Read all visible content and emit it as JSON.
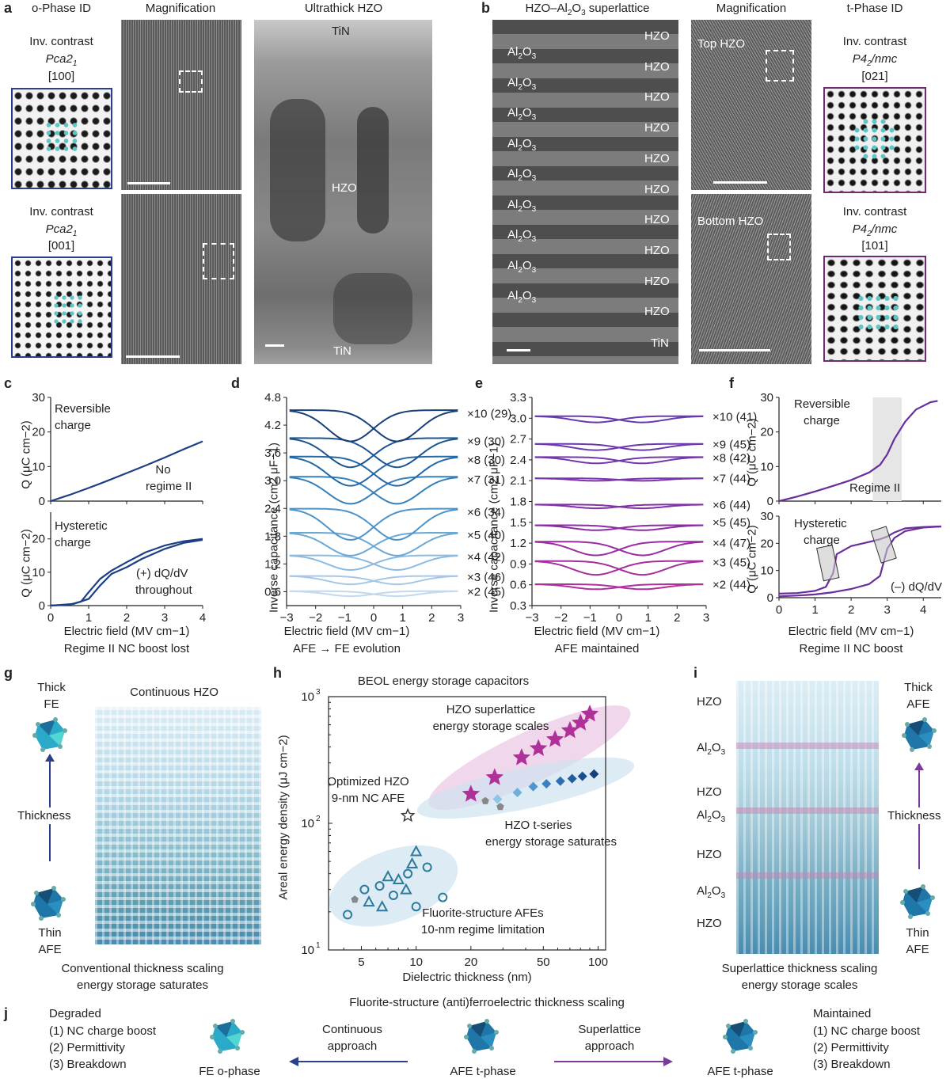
{
  "panel_letters": [
    "a",
    "b",
    "c",
    "d",
    "e",
    "f",
    "g",
    "h",
    "i",
    "j"
  ],
  "a": {
    "col1_title": "o-Phase ID",
    "col2_title": "Magnification",
    "col3_title": "Ultrathick HZO",
    "inv1": {
      "line1": "Inv. contrast",
      "group": "Pca2",
      "sub": "1",
      "dir": "[100]"
    },
    "inv2": {
      "line1": "Inv. contrast",
      "group": "Pca2",
      "sub": "1",
      "dir": "[001]"
    },
    "tin_top": "TiN",
    "hzo": "HZO",
    "tin_bottom": "TiN"
  },
  "b": {
    "col1_title_pre": "HZO–Al",
    "col1_title_sub": "2",
    "col1_title_mid": "O",
    "col1_title_sub2": "3",
    "col1_title_post": " superlattice",
    "col2_title": "Magnification",
    "col3_title": "t-Phase ID",
    "al2o3_labels": [
      "Al2O3",
      "Al2O3",
      "Al2O3",
      "Al2O3",
      "Al2O3",
      "Al2O3",
      "Al2O3",
      "Al2O3",
      "Al2O3"
    ],
    "hzo_labels": [
      "HZO",
      "HZO",
      "HZO",
      "HZO",
      "HZO",
      "HZO",
      "HZO",
      "HZO",
      "HZO",
      "HZO"
    ],
    "tin": "TiN",
    "top_hzo": "Top HZO",
    "bottom_hzo": "Bottom HZO",
    "inv1": {
      "line1": "Inv. contrast",
      "group_pre": "P4",
      "group_sub": "2",
      "group_post": "/nmc",
      "dir": "[021]"
    },
    "inv2": {
      "line1": "Inv. contrast",
      "group_pre": "P4",
      "group_sub": "2",
      "group_post": "/nmc",
      "dir": "[101]"
    }
  },
  "c": {
    "top_annot1": "Reversible",
    "top_annot2": "charge",
    "top_annot3": "No",
    "top_annot4": "regime II",
    "bot_annot1": "Hysteretic",
    "bot_annot2": "charge",
    "bot_annot3": "(+) dQ/dV",
    "bot_annot4": "throughout",
    "ylabel": "Q (μC cm−2)",
    "xlabel": "Electric field (MV cm−1)",
    "caption": "Regime II NC boost lost"
  },
  "d": {
    "ylabel": "Inverse capacitance (cm2 μF−1)",
    "xlabel": "Electric field (MV cm−1)",
    "caption": "AFE → FE evolution"
  },
  "e": {
    "ylabel": "Inverse capacitance (cm2 μF−1)",
    "xlabel": "Electric field (MV cm−1)",
    "caption": "AFE maintained"
  },
  "f": {
    "top_annot1": "Reversible",
    "top_annot2": "charge",
    "regime": "Regime II",
    "bot_annot1": "Hysteretic",
    "bot_annot2": "charge",
    "bot_annot3": "(–) dQ/dV",
    "ylabel": "Q (μC cm−2)",
    "xlabel": "Electric field (MV cm−1)",
    "caption": "Regime II NC boost"
  },
  "g": {
    "thick_fe1": "Thick",
    "thick_fe2": "FE",
    "thickness": "Thickness",
    "thin_afe1": "Thin",
    "thin_afe2": "AFE",
    "continuous": "Continuous HZO",
    "caption1": "Conventional thickness scaling",
    "caption2": "energy storage saturates"
  },
  "h": {
    "title": "BEOL energy storage capacitors",
    "annot_superlattice1": "HZO superlattice",
    "annot_superlattice2": "energy storage scales",
    "annot_opt1": "Optimized HZO",
    "annot_opt2": "9-nm NC AFE",
    "annot_tseries1": "HZO t-series",
    "annot_tseries2": "energy storage saturates",
    "annot_fluorite1": "Fluorite-structure AFEs",
    "annot_fluorite2": "10-nm regime limitation",
    "ylabel": "Areal energy density (μJ cm−2)",
    "xlabel": "Dielectric thickness (nm)",
    "xticks": [
      "5",
      "10",
      "20",
      "50",
      "100"
    ],
    "yticks": [
      "10",
      "10",
      "10"
    ],
    "ytick_exp": [
      "1",
      "2",
      "3"
    ]
  },
  "i": {
    "layers": [
      "HZO",
      "Al2O3",
      "HZO",
      "Al2O3",
      "HZO",
      "Al2O3",
      "HZO"
    ],
    "thick_afe1": "Thick",
    "thick_afe2": "AFE",
    "thickness": "Thickness",
    "thin_afe1": "Thin",
    "thin_afe2": "AFE",
    "caption1": "Superlattice thickness scaling",
    "caption2": "energy storage scales"
  },
  "j": {
    "title": "Fluorite-structure (anti)ferroelectric thickness scaling",
    "left_head": "Degraded",
    "left_items": [
      "(1) NC charge boost",
      "(2) Permittivity",
      "(3) Breakdown"
    ],
    "fe_o": "FE o-phase",
    "continuous1": "Continuous",
    "continuous2": "approach",
    "afe_t_mid": "AFE t-phase",
    "superlattice1": "Superlattice",
    "superlattice2": "approach",
    "afe_t_right": "AFE t-phase",
    "right_head": "Maintained",
    "right_items": [
      "(1) NC charge boost",
      "(2) Permittivity",
      "(3) Breakdown"
    ]
  },
  "chart_data": [
    {
      "type": "line",
      "id": "c-top",
      "xlim": [
        0,
        4
      ],
      "ylim": [
        0,
        30
      ],
      "yticks": [
        0,
        10,
        20,
        30
      ],
      "series": [
        {
          "x": [
            0,
            0.5,
            1,
            1.5,
            2,
            2.5,
            3,
            3.5,
            4
          ],
          "y": [
            0,
            1.8,
            3.8,
            5.9,
            8.1,
            10.3,
            12.6,
            15,
            17.3
          ]
        }
      ]
    },
    {
      "type": "line",
      "id": "c-bottom",
      "xlim": [
        0,
        4
      ],
      "ylim": [
        0,
        30
      ],
      "xticks": [
        0,
        1,
        2,
        3,
        4
      ],
      "yticks": [
        0,
        10,
        20
      ],
      "series": [
        {
          "x": [
            0,
            0.5,
            0.8,
            1.0,
            1.3,
            1.6,
            2.0,
            2.5,
            3.0,
            3.5,
            4.0
          ],
          "y": [
            0,
            0.3,
            1.2,
            4,
            8,
            10.5,
            13,
            16,
            18,
            19.3,
            20
          ]
        },
        {
          "x": [
            0,
            0.6,
            1.0,
            1.3,
            1.6,
            2.0,
            2.4,
            3.0,
            3.5,
            4.0
          ],
          "y": [
            0,
            0.5,
            2,
            6,
            9.5,
            11.5,
            14,
            17,
            18.8,
            19.7
          ]
        }
      ]
    },
    {
      "type": "line",
      "id": "d",
      "xlim": [
        -3,
        3
      ],
      "ylim": [
        0.3,
        4.8
      ],
      "xticks": [
        -3,
        -2,
        -1,
        0,
        1,
        2,
        3
      ],
      "yticks": [
        0.6,
        1.2,
        1.8,
        2.4,
        3.0,
        3.6,
        4.2,
        4.8
      ],
      "curves": [
        {
          "label": "×2 (45)",
          "base": 0.6,
          "amp": 0.12,
          "color": "#c2d8ec"
        },
        {
          "label": "×3 (46)",
          "base": 0.92,
          "amp": 0.2,
          "color": "#a6c8e6"
        },
        {
          "label": "×4 (42)",
          "base": 1.35,
          "amp": 0.35,
          "color": "#8dbbe0"
        },
        {
          "label": "×5 (40)",
          "base": 1.82,
          "amp": 0.55,
          "color": "#6aa8d6"
        },
        {
          "label": "×6 (34)",
          "base": 2.32,
          "amp": 0.75,
          "color": "#4d93c8"
        },
        {
          "label": "×7 (31)",
          "base": 3.02,
          "amp": 0.65,
          "color": "#3580bb"
        },
        {
          "label": "×8 (30)",
          "base": 3.45,
          "amp": 0.7,
          "color": "#2469a7"
        },
        {
          "label": "×9 (30)",
          "base": 3.85,
          "amp": 0.7,
          "color": "#1b5592"
        },
        {
          "label": "×10 (29)",
          "base": 4.45,
          "amp": 0.75,
          "color": "#173f79"
        }
      ]
    },
    {
      "type": "line",
      "id": "e",
      "xlim": [
        -3,
        3
      ],
      "ylim": [
        0.3,
        3.3
      ],
      "xticks": [
        -3,
        -2,
        -1,
        0,
        1,
        2,
        3
      ],
      "yticks": [
        0.3,
        0.6,
        0.9,
        1.2,
        1.5,
        1.8,
        2.1,
        2.4,
        2.7,
        3.0,
        3.3
      ],
      "curves": [
        {
          "label": "×2 (44)",
          "base": 0.6,
          "amp": 0.08,
          "color": "#b0309a"
        },
        {
          "label": "×3 (45)",
          "base": 0.92,
          "amp": 0.22,
          "color": "#a52d9e"
        },
        {
          "label": "×4 (47)",
          "base": 1.2,
          "amp": 0.22,
          "color": "#9a2ba2"
        },
        {
          "label": "×5 (45)",
          "base": 1.45,
          "amp": 0.08,
          "color": "#8d2aa6"
        },
        {
          "label": "×6 (44)",
          "base": 1.75,
          "amp": 0.06,
          "color": "#8230a9"
        },
        {
          "label": "×7 (44)",
          "base": 2.13,
          "amp": 0.04,
          "color": "#7a34ab"
        },
        {
          "label": "×8 (42)",
          "base": 2.43,
          "amp": 0.1,
          "color": "#7236ad"
        },
        {
          "label": "×9 (45)",
          "base": 2.62,
          "amp": 0.1,
          "color": "#6c38ae"
        },
        {
          "label": "×10 (41)",
          "base": 3.02,
          "amp": 0.1,
          "color": "#673aaf"
        }
      ]
    },
    {
      "type": "line",
      "id": "f-top",
      "xlim": [
        0,
        4.5
      ],
      "ylim": [
        0,
        30
      ],
      "yticks": [
        0,
        10,
        20,
        30
      ],
      "highlight_x": [
        2.6,
        3.4
      ],
      "series": [
        {
          "x": [
            0,
            0.5,
            1,
            1.5,
            2,
            2.5,
            2.8,
            3.0,
            3.2,
            3.5,
            3.8,
            4.2,
            4.4
          ],
          "y": [
            0,
            1.3,
            2.8,
            4.4,
            6.1,
            8.3,
            10.5,
            13.5,
            18,
            23,
            26.5,
            28.6,
            29
          ]
        }
      ]
    },
    {
      "type": "line",
      "id": "f-bottom",
      "xlim": [
        0,
        4.5
      ],
      "ylim": [
        0,
        30
      ],
      "xticks": [
        0,
        1,
        2,
        3,
        4
      ],
      "yticks": [
        0,
        10,
        20,
        30
      ],
      "series": [
        {
          "x": [
            0,
            0.5,
            1.0,
            1.3,
            1.5,
            1.6,
            2.0,
            2.5,
            2.8,
            3.0,
            3.2,
            3.5,
            4.0,
            4.5
          ],
          "y": [
            1.5,
            1.7,
            2.5,
            4,
            9,
            16,
            19,
            20.5,
            21.5,
            22.5,
            24,
            25.5,
            26,
            26.2
          ]
        },
        {
          "x": [
            0,
            0.5,
            1.0,
            1.5,
            2.0,
            2.5,
            2.8,
            3.0,
            3.2,
            3.5,
            4.0,
            4.5
          ],
          "y": [
            0.5,
            0.8,
            1.2,
            2,
            3.2,
            5,
            8,
            18,
            22,
            24.5,
            25.8,
            26.2
          ]
        }
      ]
    },
    {
      "type": "scatter",
      "id": "h",
      "xscale": "log",
      "yscale": "log",
      "xlim": [
        3.3,
        110
      ],
      "ylim": [
        10,
        1000
      ],
      "series": [
        {
          "marker": "star",
          "color": "#b0309a",
          "x": [
            20,
            27,
            38,
            47,
            58,
            70,
            80,
            90
          ],
          "y": [
            170,
            230,
            330,
            390,
            460,
            540,
            620,
            730
          ]
        },
        {
          "marker": "diamond",
          "color": "#1f66b0",
          "x": [
            28,
            36,
            44,
            52,
            62,
            72,
            82,
            95
          ],
          "y": [
            155,
            175,
            195,
            205,
            215,
            225,
            235,
            245
          ]
        },
        {
          "marker": "hollow-star",
          "color": "#333333",
          "x": [
            9
          ],
          "y": [
            115
          ]
        },
        {
          "marker": "pentagon",
          "color": "#888888",
          "x": [
            4.6,
            24,
            29
          ],
          "y": [
            25,
            150,
            135
          ]
        },
        {
          "marker": "open-circle",
          "color": "#2d7a9a",
          "x": [
            4.2,
            5.2,
            6.3,
            7.5,
            9,
            10,
            11.5,
            14
          ],
          "y": [
            19,
            30,
            32,
            27,
            40,
            22,
            45,
            26
          ]
        },
        {
          "marker": "open-triangle",
          "color": "#2d7a9a",
          "x": [
            5.5,
            6.5,
            7,
            8,
            8.8,
            9.5,
            10
          ],
          "y": [
            24,
            22,
            38,
            36,
            30,
            48,
            60
          ]
        }
      ]
    }
  ]
}
